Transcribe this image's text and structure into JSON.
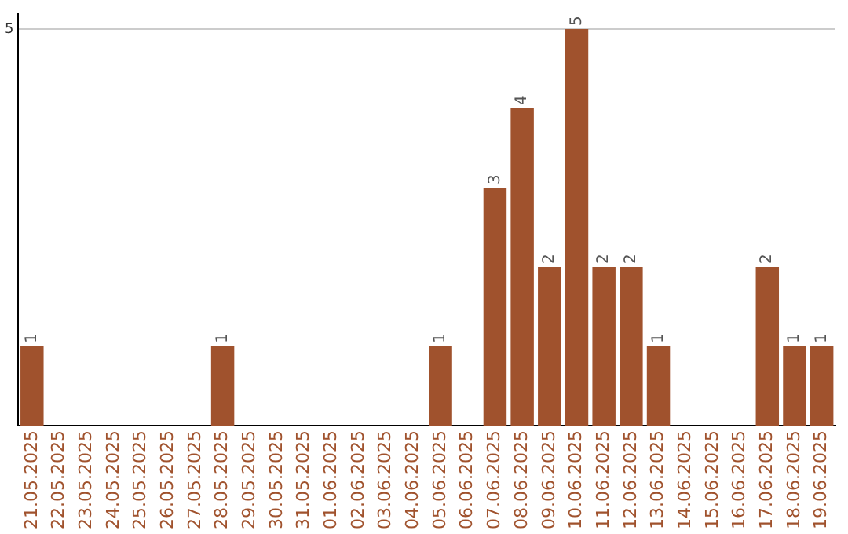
{
  "chart_data": {
    "type": "bar",
    "categories": [
      "21.05.2025",
      "22.05.2025",
      "23.05.2025",
      "24.05.2025",
      "25.05.2025",
      "26.05.2025",
      "27.05.2025",
      "28.05.2025",
      "29.05.2025",
      "30.05.2025",
      "31.05.2025",
      "01.06.2025",
      "02.06.2025",
      "03.06.2025",
      "04.06.2025",
      "05.06.2025",
      "06.06.2025",
      "07.06.2025",
      "08.06.2025",
      "09.06.2025",
      "10.06.2025",
      "11.06.2025",
      "12.06.2025",
      "13.06.2025",
      "14.06.2025",
      "15.06.2025",
      "16.06.2025",
      "17.06.2025",
      "18.06.2025",
      "19.06.2025"
    ],
    "values": [
      1,
      0,
      0,
      0,
      0,
      0,
      0,
      1,
      0,
      0,
      0,
      0,
      0,
      0,
      0,
      1,
      0,
      3,
      4,
      2,
      5,
      2,
      2,
      1,
      0,
      0,
      0,
      2,
      1,
      1
    ],
    "value_labels": [
      "1",
      null,
      null,
      null,
      null,
      null,
      null,
      "1",
      null,
      null,
      null,
      null,
      null,
      null,
      null,
      "1",
      null,
      "3",
      "4",
      "2",
      "5",
      "2",
      "2",
      "1",
      null,
      null,
      null,
      "2",
      "1",
      "1"
    ],
    "color": "#a0522d",
    "ylim": [
      0,
      5.2
    ],
    "yticks": [
      5
    ],
    "grid": "y",
    "legend": false
  }
}
